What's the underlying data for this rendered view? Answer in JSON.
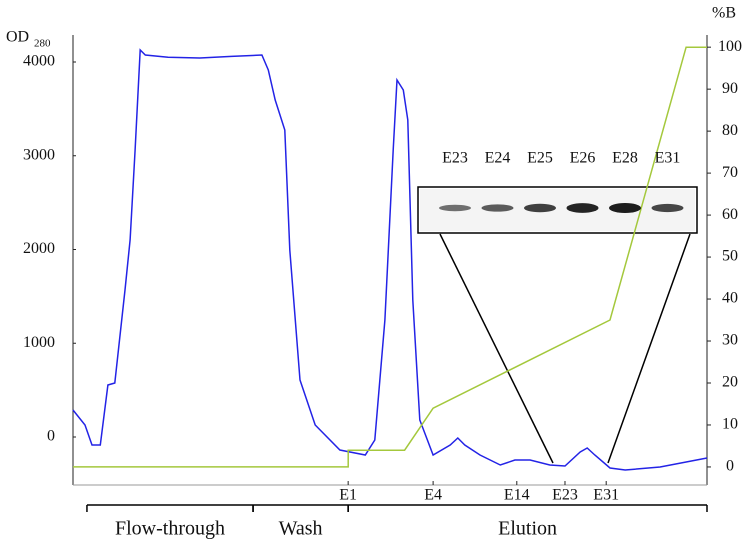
{
  "chart_data": {
    "type": "line",
    "y_label": "OD",
    "y_label_sub": "280",
    "y2_label": "%B",
    "xlim": [
      0,
      100
    ],
    "xticks": [
      {
        "value": 43.4,
        "label": "E1"
      },
      {
        "value": 56.8,
        "label": "E4"
      },
      {
        "value": 70.0,
        "label": "E14"
      },
      {
        "value": 77.6,
        "label": "E23"
      },
      {
        "value": 84.1,
        "label": "E31"
      }
    ],
    "ylim": [
      -512,
      4288
    ],
    "yticks": [
      0,
      1000,
      2000,
      3000,
      4000
    ],
    "y2lim": [
      -4.3,
      102.9
    ],
    "y2ticks": [
      0,
      10,
      20,
      30,
      40,
      50,
      60,
      70,
      80,
      90,
      100
    ],
    "series": [
      {
        "color": "#2323e6",
        "x": [
          0,
          1.9,
          3.0,
          4.3,
          5.5,
          6.6,
          8.2,
          9.0,
          9.8,
          10.6,
          11.4,
          15.0,
          20.0,
          25.0,
          29.8,
          30.8,
          31.9,
          33.4,
          34.2,
          35.8,
          38.2,
          42.1,
          46.1,
          47.6,
          49.2,
          50.5,
          51.1,
          52.1,
          52.8,
          53.6,
          54.7,
          56.8,
          59.5,
          60.7,
          61.8,
          64.2,
          67.4,
          69.7,
          72.1,
          75.2,
          77.6,
          80.0,
          81.1,
          82.3,
          84.7,
          87.1,
          92.6,
          100
        ],
        "values": [
          288,
          128,
          -85,
          -85,
          555,
          576,
          1568,
          2101,
          3061,
          4128,
          4075,
          4050,
          4043,
          4060,
          4075,
          3915,
          3595,
          3275,
          1995,
          608,
          128,
          -139,
          -192,
          -32,
          1248,
          3061,
          3808,
          3701,
          3381,
          1461,
          181,
          -192,
          -85,
          -11,
          -85,
          -192,
          -299,
          -245,
          -245,
          -299,
          -309,
          -160,
          -117,
          -192,
          -331,
          -352,
          -320,
          -224
        ]
      },
      {
        "color": "#a4c83c",
        "axis": "y2",
        "x": [
          0,
          43.4,
          43.4,
          52.3,
          56.8,
          84.7,
          96.7,
          100
        ],
        "values": [
          0,
          0,
          4,
          4,
          14,
          35,
          100,
          100
        ]
      }
    ],
    "regions": [
      {
        "label": "Flow-through",
        "range": [
          2.2,
          28.4
        ]
      },
      {
        "label": "Wash",
        "range": [
          28.4,
          43.4
        ]
      },
      {
        "label": "Elution",
        "range": [
          43.4,
          100
        ]
      }
    ],
    "inset": {
      "lanes": [
        "E23",
        "E24",
        "E25",
        "E26",
        "E28",
        "E31"
      ]
    }
  }
}
